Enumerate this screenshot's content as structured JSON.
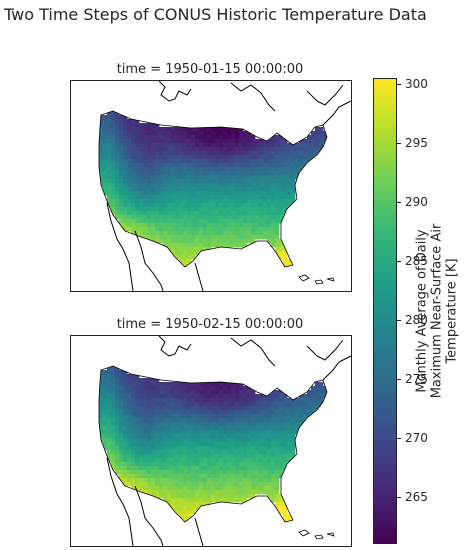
{
  "figure": {
    "title": "Two Time Steps of CONUS Historic Temperature Data"
  },
  "panels": [
    {
      "title": "time = 1950-01-15 00:00:00",
      "season_offset": 0
    },
    {
      "title": "time = 1950-02-15 00:00:00",
      "season_offset": 2
    }
  ],
  "colorbar": {
    "label_lines": [
      "Monthly Average of Daily",
      "Maximum Near-Surface Air",
      "Temperature [K]"
    ],
    "range": [
      261,
      300.5
    ],
    "ticks": [
      "265",
      "270",
      "275",
      "280",
      "285",
      "290",
      "295",
      "300"
    ],
    "colormap": "viridis",
    "colors": [
      "#440154",
      "#482878",
      "#3e4989",
      "#31688e",
      "#26828e",
      "#1f9e89",
      "#35b779",
      "#6ece58",
      "#b5de2b",
      "#fde725"
    ]
  },
  "map": {
    "region": "CONUS",
    "background_color": "#ffffff",
    "coastline_color": "#000000"
  }
}
